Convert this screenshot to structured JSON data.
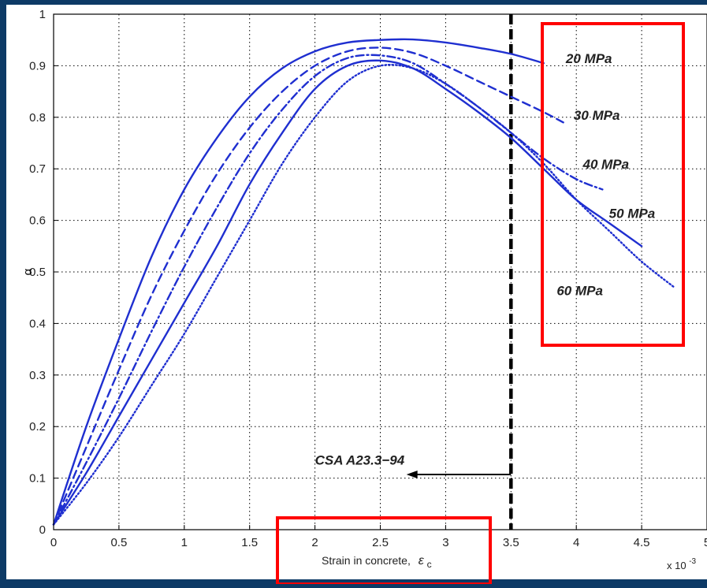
{
  "chart_data": {
    "type": "line",
    "title": "",
    "xlabel": "Strain in concrete,",
    "xlabel_symbol": "ε",
    "xlabel_subscript": "c",
    "ylabel": "α",
    "x_multiplier": "x 10",
    "x_multiplier_exp": "-3",
    "xlim": [
      0,
      5
    ],
    "ylim": [
      0,
      1
    ],
    "xticks": [
      0,
      0.5,
      1,
      1.5,
      2,
      2.5,
      3,
      3.5,
      4,
      4.5,
      5
    ],
    "xtick_labels": [
      "0",
      "0.5",
      "1",
      "1.5",
      "2",
      "2.5",
      "3",
      "3.5",
      "4",
      "4.5",
      "5"
    ],
    "yticks": [
      0,
      0.1,
      0.2,
      0.3,
      0.4,
      0.5,
      0.6,
      0.7,
      0.8,
      0.9,
      1
    ],
    "ytick_labels": [
      "0",
      "0.1",
      "0.2",
      "0.3",
      "0.4",
      "0.5",
      "0.6",
      "0.7",
      "0.8",
      "0.9",
      "1"
    ],
    "grid": true,
    "colors": {
      "series": "#1f2fd0",
      "highlight": "#ff0000",
      "background": "#0d3a66"
    },
    "series": [
      {
        "style": "solid",
        "x": [
          0,
          0.25,
          0.5,
          0.75,
          1,
          1.25,
          1.5,
          1.75,
          2,
          2.25,
          2.5,
          2.75,
          3,
          3.25,
          3.5,
          3.75
        ],
        "y": [
          0.01,
          0.2,
          0.37,
          0.53,
          0.66,
          0.76,
          0.84,
          0.895,
          0.928,
          0.945,
          0.95,
          0.951,
          0.945,
          0.935,
          0.923,
          0.905
        ]
      },
      {
        "style": "dashed",
        "x": [
          0,
          0.25,
          0.5,
          0.75,
          1,
          1.25,
          1.5,
          1.75,
          2,
          2.25,
          2.5,
          2.75,
          3,
          3.25,
          3.5,
          3.75,
          3.9
        ],
        "y": [
          0.01,
          0.16,
          0.31,
          0.455,
          0.58,
          0.69,
          0.78,
          0.85,
          0.9,
          0.928,
          0.935,
          0.925,
          0.9,
          0.87,
          0.84,
          0.81,
          0.79
        ]
      },
      {
        "style": "dashdot",
        "x": [
          0,
          0.25,
          0.5,
          0.75,
          1,
          1.25,
          1.5,
          1.75,
          2,
          2.25,
          2.5,
          2.75,
          3,
          3.25,
          3.5,
          3.75,
          4,
          4.2
        ],
        "y": [
          0.01,
          0.13,
          0.255,
          0.385,
          0.51,
          0.625,
          0.73,
          0.815,
          0.88,
          0.915,
          0.92,
          0.905,
          0.865,
          0.82,
          0.77,
          0.72,
          0.68,
          0.66
        ]
      },
      {
        "style": "solid",
        "x": [
          0,
          0.25,
          0.5,
          0.75,
          1,
          1.25,
          1.5,
          1.75,
          2,
          2.25,
          2.5,
          2.75,
          3,
          3.25,
          3.5,
          3.75,
          4,
          4.25,
          4.5
        ],
        "y": [
          0.01,
          0.11,
          0.22,
          0.33,
          0.44,
          0.55,
          0.67,
          0.77,
          0.855,
          0.9,
          0.91,
          0.895,
          0.855,
          0.81,
          0.76,
          0.7,
          0.64,
          0.595,
          0.55
        ]
      },
      {
        "style": "dotted",
        "x": [
          0,
          0.25,
          0.5,
          0.75,
          1,
          1.25,
          1.5,
          1.75,
          2,
          2.25,
          2.5,
          2.75,
          3,
          3.25,
          3.5,
          3.75,
          4,
          4.25,
          4.5,
          4.75
        ],
        "y": [
          0.01,
          0.09,
          0.18,
          0.28,
          0.38,
          0.49,
          0.6,
          0.71,
          0.8,
          0.87,
          0.9,
          0.895,
          0.865,
          0.82,
          0.77,
          0.71,
          0.64,
          0.58,
          0.52,
          0.47
        ]
      }
    ],
    "series_labels": [
      {
        "text": "20 MPa",
        "x": 3.92,
        "y": 0.905
      },
      {
        "text": "30 MPa",
        "x": 3.98,
        "y": 0.795
      },
      {
        "text": "40 MPa",
        "x": 4.05,
        "y": 0.7
      },
      {
        "text": "50 MPa",
        "x": 4.25,
        "y": 0.605
      },
      {
        "text": "60 MPa",
        "x": 3.85,
        "y": 0.455
      }
    ],
    "reference_line": {
      "x": 3.5,
      "label": "CSA A23.3−94",
      "label_x": 2.0,
      "label_y": 0.135,
      "arrow_from": 3.5,
      "arrow_to": 2.7,
      "arrow_y": 0.107
    }
  }
}
